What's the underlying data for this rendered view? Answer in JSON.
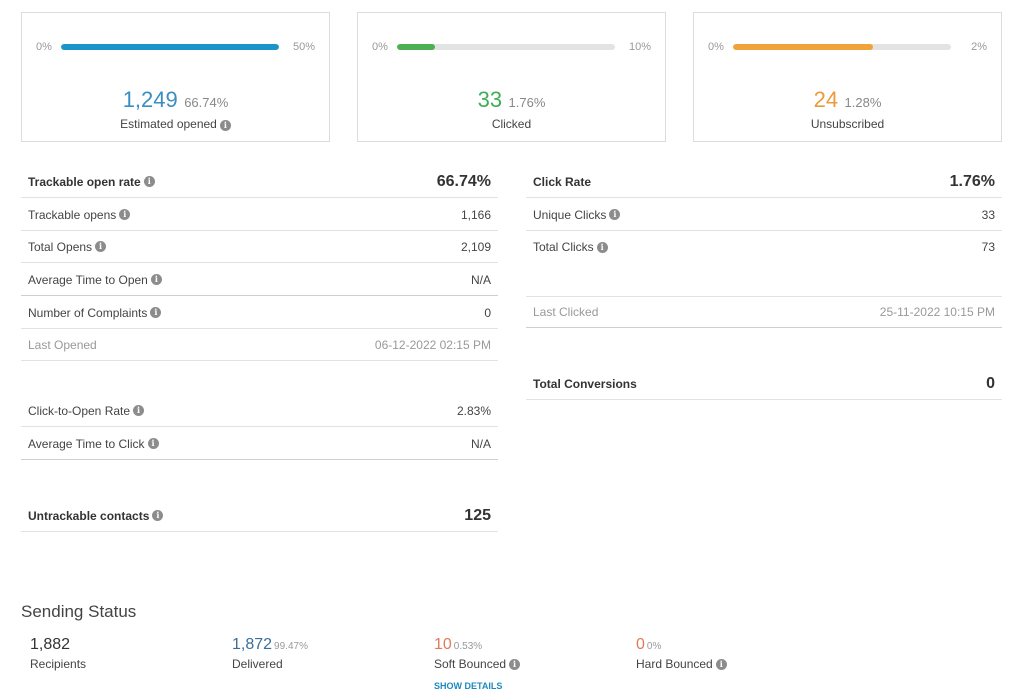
{
  "cards": [
    {
      "min": "0%",
      "max": "50%",
      "fill_fraction": 1.0,
      "color": "#1b95c9",
      "value": "1,249",
      "percent": "66.74%",
      "label": "Estimated opened",
      "has_info": true
    },
    {
      "min": "0%",
      "max": "10%",
      "fill_fraction": 0.176,
      "color": "#4caf50",
      "value": "33",
      "percent": "1.76%",
      "label": "Clicked",
      "has_info": false
    },
    {
      "min": "0%",
      "max": "2%",
      "fill_fraction": 0.64,
      "color": "#f0a33a",
      "value": "24",
      "percent": "1.28%",
      "label": "Unsubscribed",
      "has_info": false
    }
  ],
  "left_stats": {
    "trackable_open_rate": {
      "label": "Trackable open rate",
      "value": "66.74%"
    },
    "trackable_opens": {
      "label": "Trackable opens",
      "value": "1,166"
    },
    "total_opens": {
      "label": "Total Opens",
      "value": "2,109"
    },
    "avg_time_to_open": {
      "label": "Average Time to Open",
      "value": "N/A"
    },
    "complaints": {
      "label": "Number of Complaints",
      "value": "0"
    },
    "last_opened": {
      "label": "Last Opened",
      "value": "06-12-2022 02:15 PM"
    },
    "click_to_open": {
      "label": "Click-to-Open Rate",
      "value": "2.83%"
    },
    "avg_time_to_click": {
      "label": "Average Time to Click",
      "value": "N/A"
    },
    "untrackable": {
      "label": "Untrackable contacts",
      "value": "125"
    }
  },
  "right_stats": {
    "click_rate": {
      "label": "Click Rate",
      "value": "1.76%"
    },
    "unique_clicks": {
      "label": "Unique Clicks",
      "value": "33"
    },
    "total_clicks": {
      "label": "Total Clicks",
      "value": "73"
    },
    "last_clicked": {
      "label": "Last Clicked",
      "value": "25-11-2022 10:15 PM"
    },
    "total_conversions": {
      "label": "Total Conversions",
      "value": "0"
    }
  },
  "sending_status": {
    "title": "Sending Status",
    "recipients": {
      "value": "1,882",
      "label": "Recipients"
    },
    "delivered": {
      "value": "1,872",
      "percent": "99.47%",
      "label": "Delivered",
      "color": "#3a6f9a"
    },
    "soft_bounced": {
      "value": "10",
      "percent": "0.53%",
      "label": "Soft Bounced",
      "color": "#e07a5f"
    },
    "hard_bounced": {
      "value": "0",
      "percent": "0%",
      "label": "Hard Bounced",
      "color": "#e07a5f"
    },
    "show_details": "SHOW DETAILS"
  },
  "icons": {
    "info": "info-icon"
  }
}
